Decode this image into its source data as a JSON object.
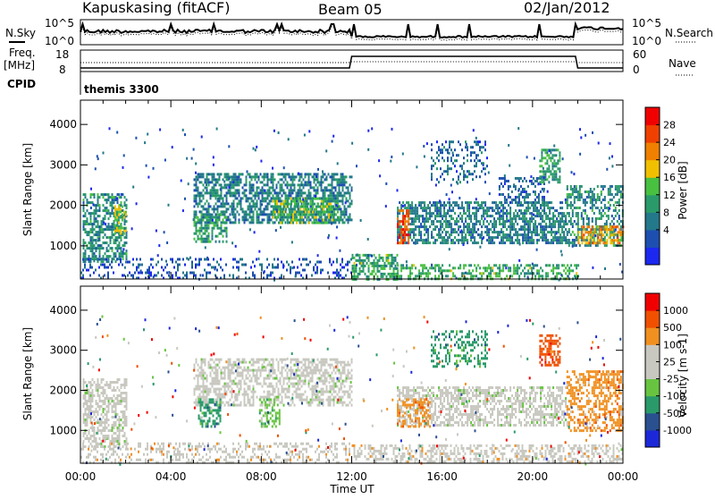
{
  "header": {
    "station": "Kapuskasing (fitACF)",
    "beam": "Beam 05",
    "date": "02/Jan/2012"
  },
  "summary": {
    "nsky_label": "N.Sky",
    "nsky_ticks": [
      "10^5",
      "10^0"
    ],
    "nsearch_label": "N.Search",
    "freq_label_1": "Freq.",
    "freq_label_2": "[MHz]",
    "freq_ticks": [
      "18",
      "8"
    ],
    "nave_ticks": [
      "60",
      "0"
    ],
    "nave_label": "Nave",
    "cpid_label": "CPID",
    "cpid_value": "themis 3300"
  },
  "colors": {
    "power": [
      "#1c28f0",
      "#1d4fb0",
      "#23788a",
      "#2a9a6a",
      "#48c040",
      "#f0c000",
      "#f08000",
      "#f04000",
      "#f00000"
    ],
    "velocity": [
      "#1c28d8",
      "#2a5090",
      "#2a9a6a",
      "#68c440",
      "#c8c8c0",
      "#c8c8c0",
      "#f09020",
      "#f05000",
      "#f00000"
    ],
    "ground": "#c8c8c0"
  },
  "chart_data": [
    {
      "type": "heatmap",
      "quantity": "Power",
      "ylabel": "Slant Range [km]",
      "ylim": [
        180,
        4600
      ],
      "yticks": [
        1000,
        2000,
        3000,
        4000
      ],
      "xlim": [
        0,
        24
      ],
      "xtick_labels": [
        "00:00",
        "04:00",
        "08:00",
        "12:00",
        "16:00",
        "20:00",
        "00:00"
      ],
      "colorbar": {
        "label": "Power [dB]",
        "ticks": [
          "28",
          "24",
          "20",
          "16",
          "12",
          "8",
          "4"
        ],
        "range": [
          0,
          30
        ]
      },
      "regions": [
        {
          "t": [
            0.1,
            2.0
          ],
          "r": [
            600,
            2300
          ],
          "level": 10,
          "density": 0.55
        },
        {
          "t": [
            1.5,
            2.0
          ],
          "r": [
            1300,
            2000
          ],
          "level": 16,
          "density": 0.5
        },
        {
          "t": [
            0.0,
            12.0
          ],
          "r": [
            200,
            700
          ],
          "level": 5,
          "density": 0.25
        },
        {
          "t": [
            5.0,
            12.0
          ],
          "r": [
            1600,
            2800
          ],
          "level": 9,
          "density": 0.6
        },
        {
          "t": [
            8.5,
            11.5
          ],
          "r": [
            1600,
            2200
          ],
          "level": 14,
          "density": 0.55
        },
        {
          "t": [
            5.0,
            6.5
          ],
          "r": [
            1100,
            1800
          ],
          "level": 12,
          "density": 0.5
        },
        {
          "t": [
            12.0,
            14.0
          ],
          "r": [
            200,
            800
          ],
          "level": 13,
          "density": 0.55
        },
        {
          "t": [
            14.0,
            22.0
          ],
          "r": [
            200,
            550
          ],
          "level": 13,
          "density": 0.5
        },
        {
          "t": [
            14.0,
            21.5
          ],
          "r": [
            1100,
            2100
          ],
          "level": 9,
          "density": 0.6
        },
        {
          "t": [
            14.0,
            14.5
          ],
          "r": [
            1100,
            1900
          ],
          "level": 25,
          "density": 0.6
        },
        {
          "t": [
            15.5,
            18.0
          ],
          "r": [
            2600,
            3600
          ],
          "level": 7,
          "density": 0.25
        },
        {
          "t": [
            18.5,
            20.5
          ],
          "r": [
            2000,
            2700
          ],
          "level": 7,
          "density": 0.35
        },
        {
          "t": [
            20.3,
            21.2
          ],
          "r": [
            2600,
            3400
          ],
          "level": 12,
          "density": 0.55
        },
        {
          "t": [
            21.5,
            24.0
          ],
          "r": [
            1000,
            2500
          ],
          "level": 10,
          "density": 0.5
        },
        {
          "t": [
            22.0,
            24.0
          ],
          "r": [
            1100,
            1500
          ],
          "level": 20,
          "density": 0.5
        }
      ]
    },
    {
      "type": "heatmap",
      "quantity": "Velocity",
      "ylabel": "Slant Range [km]",
      "ylim": [
        180,
        4600
      ],
      "yticks": [
        1000,
        2000,
        3000,
        4000
      ],
      "xlim": [
        0,
        24
      ],
      "xtick_labels": [
        "00:00",
        "04:00",
        "08:00",
        "12:00",
        "16:00",
        "20:00",
        "00:00"
      ],
      "xlabel": "Time UT",
      "colorbar": {
        "label": "Velocity [m s-1]",
        "ticks": [
          "1000",
          "500",
          "100",
          "25",
          "-25",
          "-100",
          "-500",
          "-1000"
        ]
      },
      "regions": [
        {
          "t": [
            0.1,
            2.0
          ],
          "r": [
            600,
            2300
          ],
          "cat": 4,
          "density": 0.55
        },
        {
          "t": [
            0.0,
            12.0
          ],
          "r": [
            200,
            700
          ],
          "cat": 5,
          "density": 0.3
        },
        {
          "t": [
            5.0,
            12.0
          ],
          "r": [
            1600,
            2800
          ],
          "cat": 4,
          "density": 0.55
        },
        {
          "t": [
            5.2,
            6.2
          ],
          "r": [
            1100,
            1800
          ],
          "cat": 2,
          "density": 0.55
        },
        {
          "t": [
            7.9,
            8.8
          ],
          "r": [
            1100,
            1800
          ],
          "cat": 3,
          "density": 0.55
        },
        {
          "t": [
            12.0,
            24.0
          ],
          "r": [
            200,
            650
          ],
          "cat": 5,
          "density": 0.45
        },
        {
          "t": [
            14.0,
            21.5
          ],
          "r": [
            1100,
            2100
          ],
          "cat": 4,
          "density": 0.55
        },
        {
          "t": [
            14.0,
            15.5
          ],
          "r": [
            1100,
            1800
          ],
          "cat": 6,
          "density": 0.45
        },
        {
          "t": [
            15.5,
            18.0
          ],
          "r": [
            2600,
            3500
          ],
          "cat": 2,
          "density": 0.3
        },
        {
          "t": [
            20.3,
            21.2
          ],
          "r": [
            2600,
            3400
          ],
          "cat": 7,
          "density": 0.6
        },
        {
          "t": [
            21.5,
            24.0
          ],
          "r": [
            1000,
            2500
          ],
          "cat": 6,
          "density": 0.5
        }
      ]
    }
  ]
}
